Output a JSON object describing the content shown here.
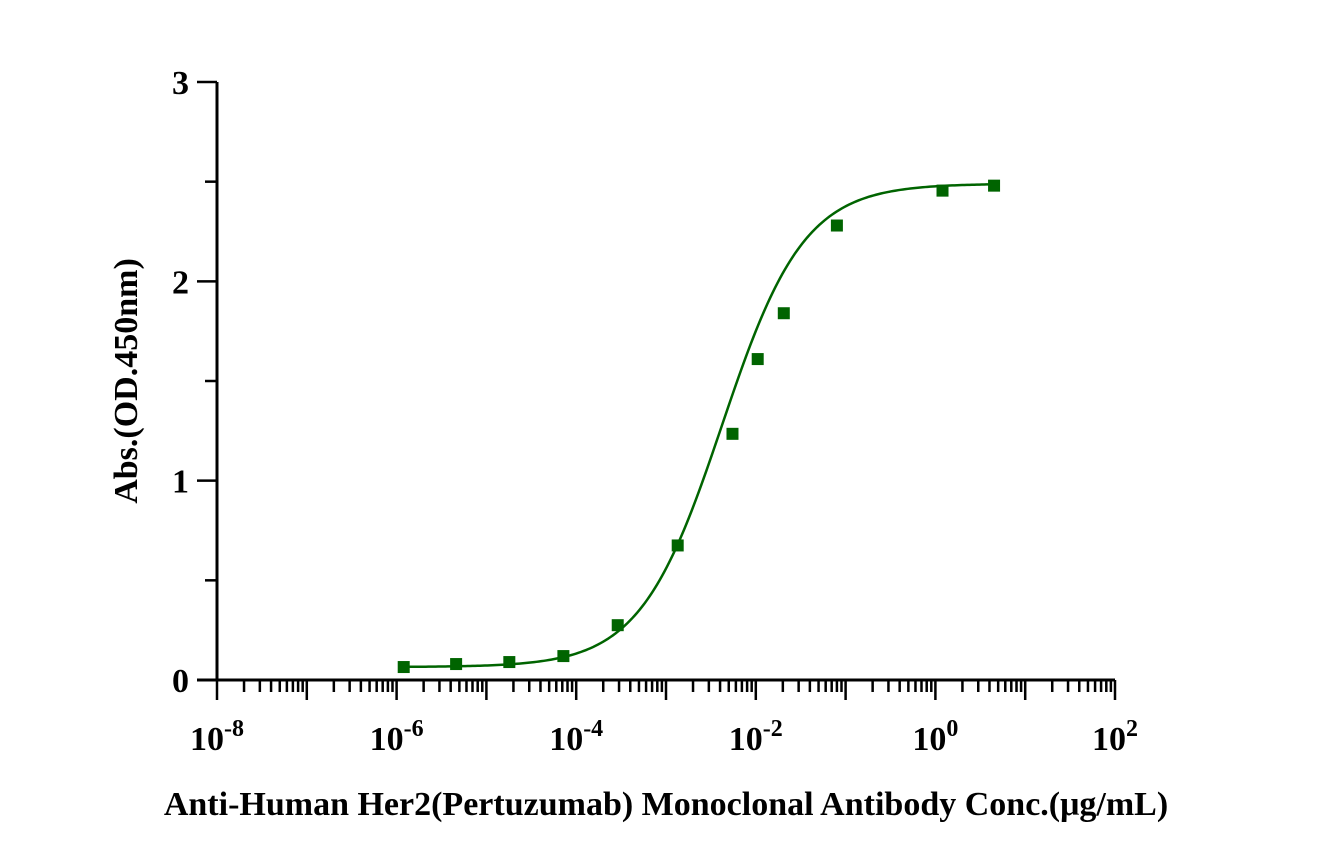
{
  "chart_data": {
    "type": "scatter",
    "title": "",
    "xlabel": "Anti-Human Her2(Pertuzumab) Monoclonal Antibody Conc.(μg/mL)",
    "ylabel": "Abs.(OD.450nm)",
    "x_scale": "log10",
    "xlim": [
      1e-08,
      100
    ],
    "ylim": [
      0,
      3
    ],
    "x_ticks": [
      {
        "value": 1e-08,
        "base": "10",
        "exp": "-8"
      },
      {
        "value": 1e-06,
        "base": "10",
        "exp": "-6"
      },
      {
        "value": 0.0001,
        "base": "10",
        "exp": "-4"
      },
      {
        "value": 0.01,
        "base": "10",
        "exp": "-2"
      },
      {
        "value": 1,
        "base": "10",
        "exp": "0"
      },
      {
        "value": 100,
        "base": "10",
        "exp": "2"
      }
    ],
    "y_ticks": [
      {
        "value": 0,
        "label": "0"
      },
      {
        "value": 1,
        "label": "1"
      },
      {
        "value": 2,
        "label": "2"
      },
      {
        "value": 3,
        "label": "3"
      }
    ],
    "y_minor_ticks": [
      0.5,
      1.5,
      2.5
    ],
    "grid": false,
    "legend": "none",
    "color": "#006400",
    "marker": "square",
    "series": [
      {
        "x": [
          1.2e-06,
          4.6e-06,
          1.8e-05,
          7.2e-05,
          0.00029,
          0.00135,
          0.0055,
          0.0105,
          0.0205,
          0.08,
          1.2,
          4.5
        ],
        "y": [
          0.065,
          0.08,
          0.09,
          0.12,
          0.275,
          0.675,
          1.235,
          1.61,
          1.84,
          2.28,
          2.455,
          2.48
        ]
      }
    ],
    "fit": {
      "type": "4PL",
      "bottom": 0.065,
      "top": 2.49,
      "ec50": 0.0042,
      "hill": 0.95,
      "x_range": [
        1.2e-06,
        4.5
      ]
    }
  }
}
